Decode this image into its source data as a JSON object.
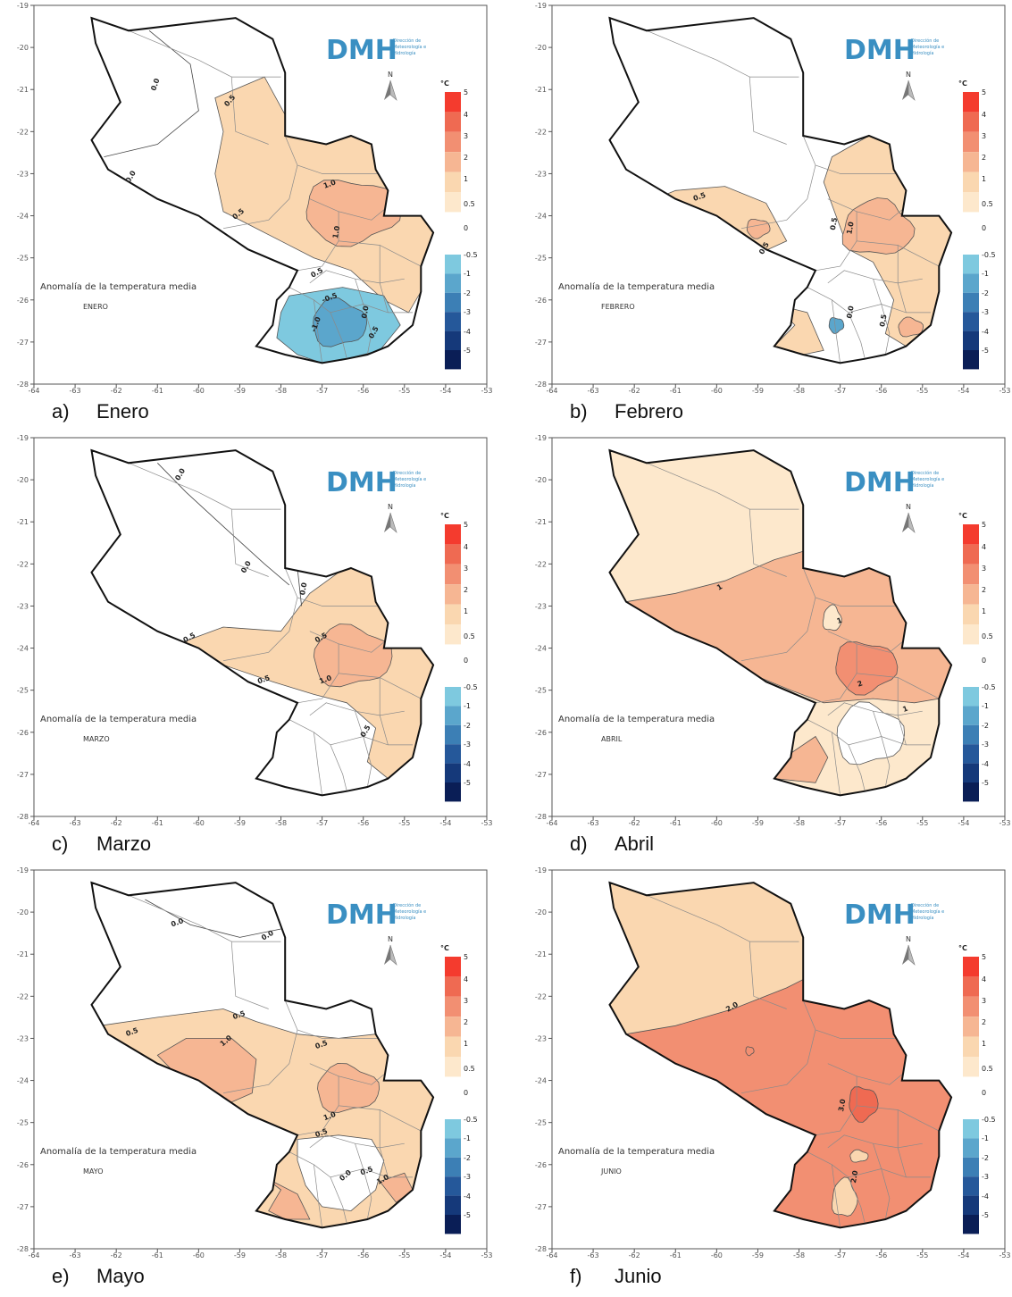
{
  "logo": {
    "text": "DMH",
    "subtitle": [
      "Dirección de",
      "Meteorología e",
      "Hidrología"
    ]
  },
  "north_label": "N",
  "unit": "°C",
  "map_title": "Anomalía de la temperatura media",
  "x_ticks": [
    "-64",
    "-63",
    "-62",
    "-61",
    "-60",
    "-59",
    "-58",
    "-57",
    "-56",
    "-55",
    "-54",
    "-53"
  ],
  "y_ticks": [
    "-19",
    "-20",
    "-21",
    "-22",
    "-23",
    "-24",
    "-25",
    "-26",
    "-27",
    "-28"
  ],
  "legend": {
    "labels": [
      "5",
      "4",
      "3",
      "2",
      "1",
      "0.5",
      "0",
      "-0.5",
      "-1",
      "-2",
      "-3",
      "-4",
      "-5"
    ],
    "warm_colors": [
      "#f43b2e",
      "#ef6a52",
      "#f28f72",
      "#f6b693",
      "#fad7b0",
      "#fde8cc"
    ],
    "cold_colors": [
      "#7ec9df",
      "#5ba6cc",
      "#3c7fb5",
      "#25589a",
      "#15397a",
      "#0a1e56"
    ]
  },
  "panels": [
    {
      "letter": "a)",
      "caption": "Enero",
      "month": "ENERO",
      "contour_labels": [
        "0.0",
        "0.0",
        "0.5",
        "0.5",
        "1.0",
        "1.0",
        "0.5",
        "-0.5",
        "-1.0",
        "0.0",
        "0.5"
      ]
    },
    {
      "letter": "b)",
      "caption": "Febrero",
      "month": "FEBRERO",
      "contour_labels": [
        "0.5",
        "0.5",
        "1.0",
        "0.5",
        "0.0",
        "0.5"
      ]
    },
    {
      "letter": "c)",
      "caption": "Marzo",
      "month": "MARZO",
      "contour_labels": [
        "0.0",
        "0.0",
        "0.0",
        "0.5",
        "0.5",
        "1.0",
        "0.5",
        "0.5"
      ]
    },
    {
      "letter": "d)",
      "caption": "Abril",
      "month": "ABRIL",
      "contour_labels": [
        "1",
        "1",
        "2",
        "1"
      ]
    },
    {
      "letter": "e)",
      "caption": "Mayo",
      "month": "MAYO",
      "contour_labels": [
        "0.0",
        "0.0",
        "0.5",
        "0.5",
        "1.0",
        "0.5",
        "1.0",
        "0.5",
        "0.0",
        "0.5",
        "1.0"
      ]
    },
    {
      "letter": "f)",
      "caption": "Junio",
      "month": "JUNIO",
      "contour_labels": [
        "2.0",
        "3.0",
        "2.0"
      ]
    }
  ]
}
